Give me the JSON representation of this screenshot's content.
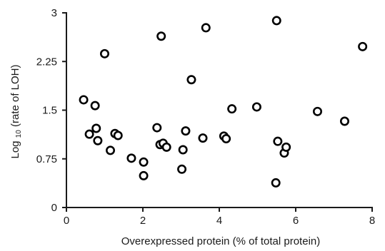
{
  "chart_data": {
    "type": "scatter",
    "title": "",
    "xlabel": "Overexpressed protein  (% of total protein)",
    "ylabel": {
      "prefix": "Log",
      "subscript": "10",
      "suffix": " (rate of LOH)"
    },
    "xlim": [
      0,
      8
    ],
    "ylim": [
      0,
      3
    ],
    "xticks": [
      0,
      2,
      4,
      6,
      8
    ],
    "yticks": [
      0,
      0.75,
      1.5,
      2.25,
      3
    ],
    "xtick_labels": [
      "0",
      "2",
      "4",
      "6",
      "8"
    ],
    "ytick_labels": [
      "0",
      "0.75",
      "1.5",
      "2.25",
      "3"
    ],
    "grid": false,
    "legend": false,
    "marker": "open-circle",
    "points": [
      {
        "x": 0.45,
        "y": 1.66
      },
      {
        "x": 0.6,
        "y": 1.13
      },
      {
        "x": 0.75,
        "y": 1.57
      },
      {
        "x": 0.78,
        "y": 1.22
      },
      {
        "x": 0.82,
        "y": 1.03
      },
      {
        "x": 1.0,
        "y": 2.37
      },
      {
        "x": 1.15,
        "y": 0.88
      },
      {
        "x": 1.27,
        "y": 1.14
      },
      {
        "x": 1.35,
        "y": 1.11
      },
      {
        "x": 1.7,
        "y": 0.76
      },
      {
        "x": 2.02,
        "y": 0.7
      },
      {
        "x": 2.02,
        "y": 0.49
      },
      {
        "x": 2.37,
        "y": 1.23
      },
      {
        "x": 2.45,
        "y": 0.97
      },
      {
        "x": 2.48,
        "y": 2.64
      },
      {
        "x": 2.53,
        "y": 0.99
      },
      {
        "x": 2.62,
        "y": 0.93
      },
      {
        "x": 3.02,
        "y": 0.59
      },
      {
        "x": 3.05,
        "y": 0.89
      },
      {
        "x": 3.12,
        "y": 1.18
      },
      {
        "x": 3.27,
        "y": 1.97
      },
      {
        "x": 3.57,
        "y": 1.07
      },
      {
        "x": 3.65,
        "y": 2.77
      },
      {
        "x": 4.12,
        "y": 1.1
      },
      {
        "x": 4.18,
        "y": 1.06
      },
      {
        "x": 4.33,
        "y": 1.52
      },
      {
        "x": 4.98,
        "y": 1.55
      },
      {
        "x": 5.48,
        "y": 0.38
      },
      {
        "x": 5.5,
        "y": 2.88
      },
      {
        "x": 5.53,
        "y": 1.02
      },
      {
        "x": 5.7,
        "y": 0.84
      },
      {
        "x": 5.75,
        "y": 0.93
      },
      {
        "x": 6.57,
        "y": 1.48
      },
      {
        "x": 7.28,
        "y": 1.33
      },
      {
        "x": 7.75,
        "y": 2.48
      }
    ]
  }
}
